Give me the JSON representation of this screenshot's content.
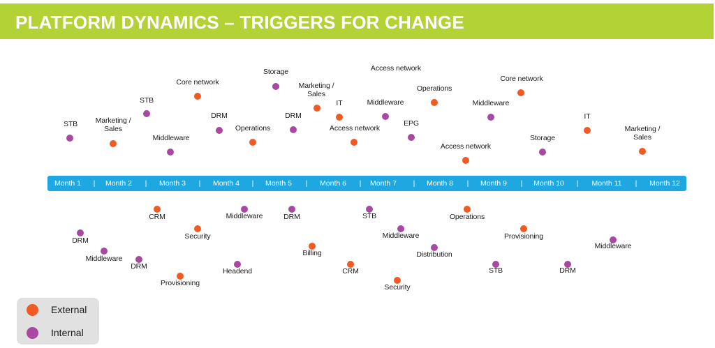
{
  "title": "PLATFORM DYNAMICS – TRIGGERS FOR CHANGE",
  "colors": {
    "external": "#f15a22",
    "internal": "#a749a0",
    "timeline": "#1fa7e1",
    "header": "#b2d235"
  },
  "months": [
    "Month 1",
    "Month 2",
    "Month 3",
    "Month 4",
    "Month 5",
    "Month 6",
    "Month 7",
    "Month 8",
    "Month 9",
    "Month 10",
    "Month 11",
    "Month 12"
  ],
  "separator": "|",
  "triggers_above": [
    {
      "label": "STB",
      "type": "internal"
    },
    {
      "label": "Marketing /\nSales",
      "type": "external"
    },
    {
      "label": "STB",
      "type": "internal"
    },
    {
      "label": "Middleware",
      "type": "internal"
    },
    {
      "label": "Core network",
      "type": "external"
    },
    {
      "label": "DRM",
      "type": "internal"
    },
    {
      "label": "Operations",
      "type": "external"
    },
    {
      "label": "Storage",
      "type": "internal"
    },
    {
      "label": "DRM",
      "type": "internal"
    },
    {
      "label": "Marketing /\nSales",
      "type": "external"
    },
    {
      "label": "IT",
      "type": "external"
    },
    {
      "label": "Access network",
      "type": "external"
    },
    {
      "label": "Access network",
      "type": "internal"
    },
    {
      "label": "Middleware",
      "type": "internal"
    },
    {
      "label": "EPG",
      "type": "internal"
    },
    {
      "label": "Operations",
      "type": "external"
    },
    {
      "label": "Access network",
      "type": "external"
    },
    {
      "label": "Middleware",
      "type": "internal"
    },
    {
      "label": "Core network",
      "type": "external"
    },
    {
      "label": "Storage",
      "type": "internal"
    },
    {
      "label": "IT",
      "type": "external"
    },
    {
      "label": "Marketing /\nSales",
      "type": "external"
    }
  ],
  "triggers_below": [
    {
      "label": "DRM",
      "type": "internal"
    },
    {
      "label": "Middleware",
      "type": "internal"
    },
    {
      "label": "DRM",
      "type": "internal"
    },
    {
      "label": "CRM",
      "type": "external"
    },
    {
      "label": "Provisioning",
      "type": "external"
    },
    {
      "label": "Security",
      "type": "external"
    },
    {
      "label": "Middleware",
      "type": "internal"
    },
    {
      "label": "Headend",
      "type": "internal"
    },
    {
      "label": "DRM",
      "type": "internal"
    },
    {
      "label": "Billing",
      "type": "external"
    },
    {
      "label": "CRM",
      "type": "external"
    },
    {
      "label": "STB",
      "type": "internal"
    },
    {
      "label": "Middleware",
      "type": "internal"
    },
    {
      "label": "Security",
      "type": "external"
    },
    {
      "label": "Distribution",
      "type": "internal"
    },
    {
      "label": "Operations",
      "type": "external"
    },
    {
      "label": "Provisioning",
      "type": "external"
    },
    {
      "label": "STB",
      "type": "internal"
    },
    {
      "label": "DRM",
      "type": "internal"
    },
    {
      "label": "Middleware",
      "type": "internal"
    }
  ],
  "legend": [
    {
      "label": "External",
      "type": "external"
    },
    {
      "label": "Internal",
      "type": "internal"
    }
  ]
}
